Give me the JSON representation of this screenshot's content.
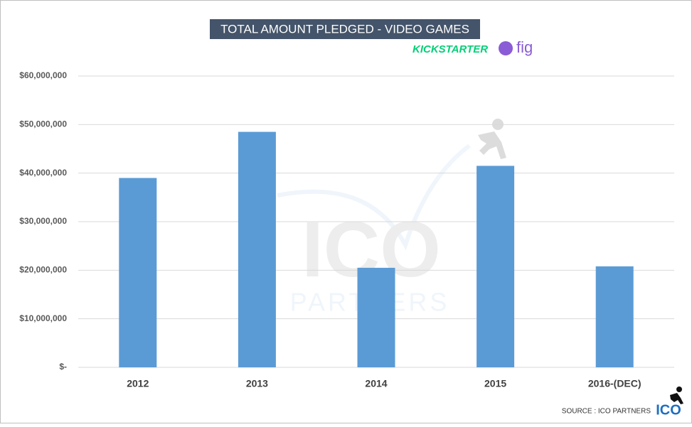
{
  "chart_data": {
    "type": "bar",
    "title": "TOTAL AMOUNT PLEDGED - VIDEO GAMES",
    "categories": [
      "2012",
      "2013",
      "2014",
      "2015",
      "2016-(DEC)"
    ],
    "values": [
      39000000,
      48500000,
      20500000,
      41500000,
      20800000
    ],
    "color": "#5b9bd5",
    "ylim": [
      0,
      60000000
    ],
    "yticks": [
      {
        "value": 0,
        "label": "$-"
      },
      {
        "value": 10000000,
        "label": "$10,000,000"
      },
      {
        "value": 20000000,
        "label": "$20,000,000"
      },
      {
        "value": 30000000,
        "label": "$30,000,000"
      },
      {
        "value": 40000000,
        "label": "$40,000,000"
      },
      {
        "value": 50000000,
        "label": "$50,000,000"
      },
      {
        "value": 60000000,
        "label": "$60,000,000"
      }
    ],
    "grid": true,
    "source": "SOURCE : ICO PARTNERS"
  },
  "branding": {
    "kickstarter": "KICKSTARTER",
    "fig": "fig",
    "logo": "ICO",
    "watermark_big": "ICO",
    "watermark_small": "PARTNERS"
  }
}
